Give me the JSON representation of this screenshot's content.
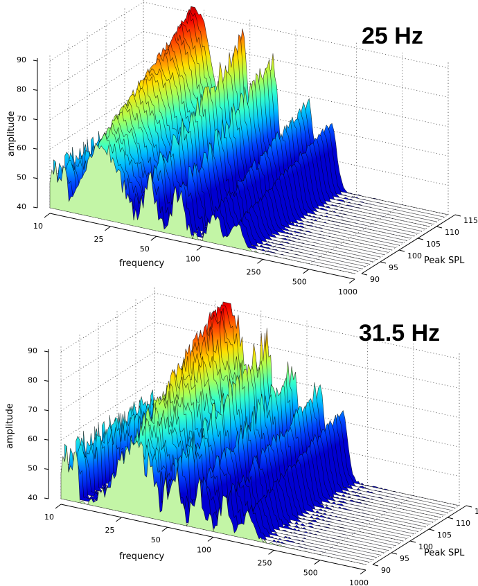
{
  "chart_data": [
    {
      "type": "waterfall",
      "title": "25 Hz",
      "xlabel": "frequency",
      "ylabel": "Peak SPL",
      "zlabel": "amplitude",
      "x_scale": "log",
      "xlim": [
        10,
        1000
      ],
      "x_ticks": [
        "10",
        "25",
        "50",
        "100",
        "250",
        "500",
        "1000"
      ],
      "x_tick_values": [
        10,
        25,
        50,
        100,
        250,
        500,
        1000
      ],
      "ylim": [
        90,
        115
      ],
      "y_ticks": [
        "90",
        "95",
        "100",
        "105",
        "110",
        "115"
      ],
      "zlim": [
        40,
        92
      ],
      "z_ticks": [
        "40",
        "50",
        "60",
        "70",
        "80",
        "90"
      ],
      "grid": true,
      "spl_levels": [
        90,
        91,
        92,
        93,
        94,
        95,
        96,
        97,
        98,
        99,
        100,
        101,
        102,
        103,
        104,
        105,
        106,
        107,
        108,
        109,
        110,
        111,
        112,
        113,
        114,
        115
      ],
      "main_peak": {
        "frequency": 22,
        "amplitude_front": 65,
        "amplitude_back": 92
      },
      "secondary_peaks": [
        {
          "frequency": 45,
          "amplitude_back": 83
        },
        {
          "frequency": 70,
          "amplitude_back": 80
        },
        {
          "frequency": 120,
          "amplitude_back": 68
        },
        {
          "frequency": 170,
          "amplitude_back": 63
        }
      ],
      "noise_level": 6,
      "colormap": "jet",
      "front_slice_color": "#c3f5a6"
    },
    {
      "type": "waterfall",
      "title": "31.5 Hz",
      "xlabel": "frequency",
      "ylabel": "Peak SPL",
      "zlabel": "amplitude",
      "x_scale": "log",
      "xlim": [
        10,
        1000
      ],
      "x_ticks": [
        "10",
        "25",
        "50",
        "100",
        "250",
        "500",
        "1000"
      ],
      "x_tick_values": [
        10,
        25,
        50,
        100,
        250,
        500,
        1000
      ],
      "ylim": [
        90,
        115
      ],
      "y_ticks": [
        "90",
        "95",
        "100",
        "105",
        "110",
        "115"
      ],
      "zlim": [
        40,
        92
      ],
      "z_ticks": [
        "40",
        "50",
        "60",
        "70",
        "80",
        "90"
      ],
      "grid": true,
      "spl_levels": [
        90,
        91,
        92,
        93,
        94,
        95,
        96,
        97,
        98,
        99,
        100,
        101,
        102,
        103,
        104,
        105,
        106,
        107,
        108,
        109,
        110,
        111,
        112,
        113,
        114,
        115
      ],
      "main_peak": {
        "frequency": 30,
        "amplitude_front": 62,
        "amplitude_back": 92
      },
      "secondary_peaks": [
        {
          "frequency": 55,
          "amplitude_back": 78
        },
        {
          "frequency": 80,
          "amplitude_back": 74
        },
        {
          "frequency": 120,
          "amplitude_back": 70
        },
        {
          "frequency": 170,
          "amplitude_back": 64
        }
      ],
      "noise_level": 9,
      "colormap": "jet",
      "front_slice_color": "#c3f5a6"
    }
  ]
}
